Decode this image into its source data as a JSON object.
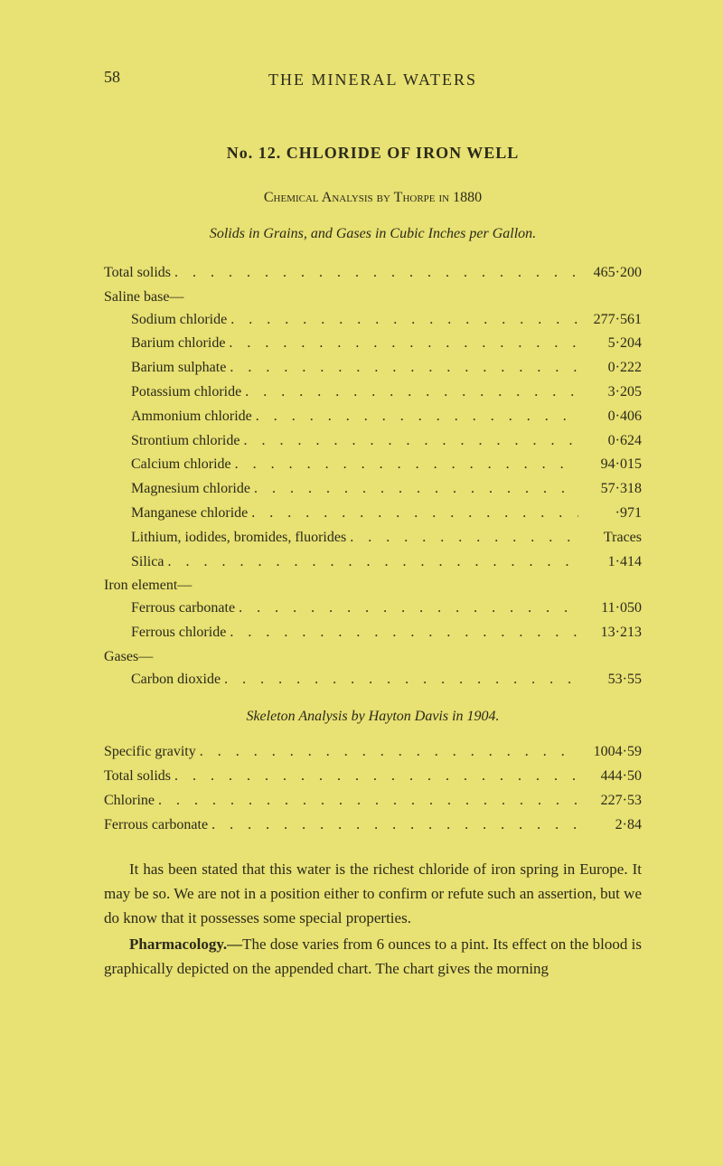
{
  "page_number": "58",
  "running_header": "THE MINERAL WATERS",
  "title": "No. 12.  CHLORIDE OF IRON WELL",
  "subtitle": "Chemical Analysis by Thorpe in 1880",
  "solids_line": "Solids in Grains, and Gases in Cubic Inches per Gallon.",
  "table1": {
    "rows": [
      {
        "label": "Total solids",
        "indent": 0,
        "value": "465·200"
      },
      {
        "label": "Saline base—",
        "indent": 0,
        "value": ""
      },
      {
        "label": "Sodium chloride",
        "indent": 1,
        "value": "277·561"
      },
      {
        "label": "Barium chloride",
        "indent": 1,
        "value": "5·204"
      },
      {
        "label": "Barium sulphate",
        "indent": 1,
        "value": "0·222"
      },
      {
        "label": "Potassium chloride",
        "indent": 1,
        "value": "3·205"
      },
      {
        "label": "Ammonium chloride",
        "indent": 1,
        "value": "0·406"
      },
      {
        "label": "Strontium chloride",
        "indent": 1,
        "value": "0·624"
      },
      {
        "label": "Calcium chloride",
        "indent": 1,
        "value": "94·015"
      },
      {
        "label": "Magnesium chloride",
        "indent": 1,
        "value": "57·318"
      },
      {
        "label": "Manganese chloride",
        "indent": 1,
        "value": "·971"
      },
      {
        "label": "Lithium, iodides, bromides, fluorides",
        "indent": 1,
        "value": "Traces"
      },
      {
        "label": "Silica",
        "indent": 1,
        "value": "1·414"
      },
      {
        "label": "Iron element—",
        "indent": 0,
        "value": ""
      },
      {
        "label": "Ferrous carbonate",
        "indent": 1,
        "value": "11·050"
      },
      {
        "label": "Ferrous chloride",
        "indent": 1,
        "value": "13·213"
      },
      {
        "label": "Gases—",
        "indent": 0,
        "value": ""
      },
      {
        "label": "Carbon dioxide",
        "indent": 1,
        "value": "53·55"
      }
    ]
  },
  "skeleton_title": "Skeleton Analysis by Hayton Davis in 1904.",
  "table2": {
    "rows": [
      {
        "label": "Specific gravity",
        "indent": 0,
        "value": "1004·59"
      },
      {
        "label": "Total solids",
        "indent": 0,
        "value": "444·50"
      },
      {
        "label": "Chlorine",
        "indent": 0,
        "value": "227·53"
      },
      {
        "label": "Ferrous carbonate",
        "indent": 0,
        "value": "2·84"
      }
    ]
  },
  "paragraphs": [
    "It has been stated that this water is the richest chloride of iron spring in Europe. It may be so. We are not in a position either to confirm or refute such an assertion, but we do know that it possesses some special properties.",
    "Pharmacology.—The dose varies from 6 ounces to a pint. Its effect on the blood is graphically depicted on the appended chart. The chart gives the morning"
  ],
  "colors": {
    "background": "#e8e173",
    "text": "#2a2a1a"
  }
}
